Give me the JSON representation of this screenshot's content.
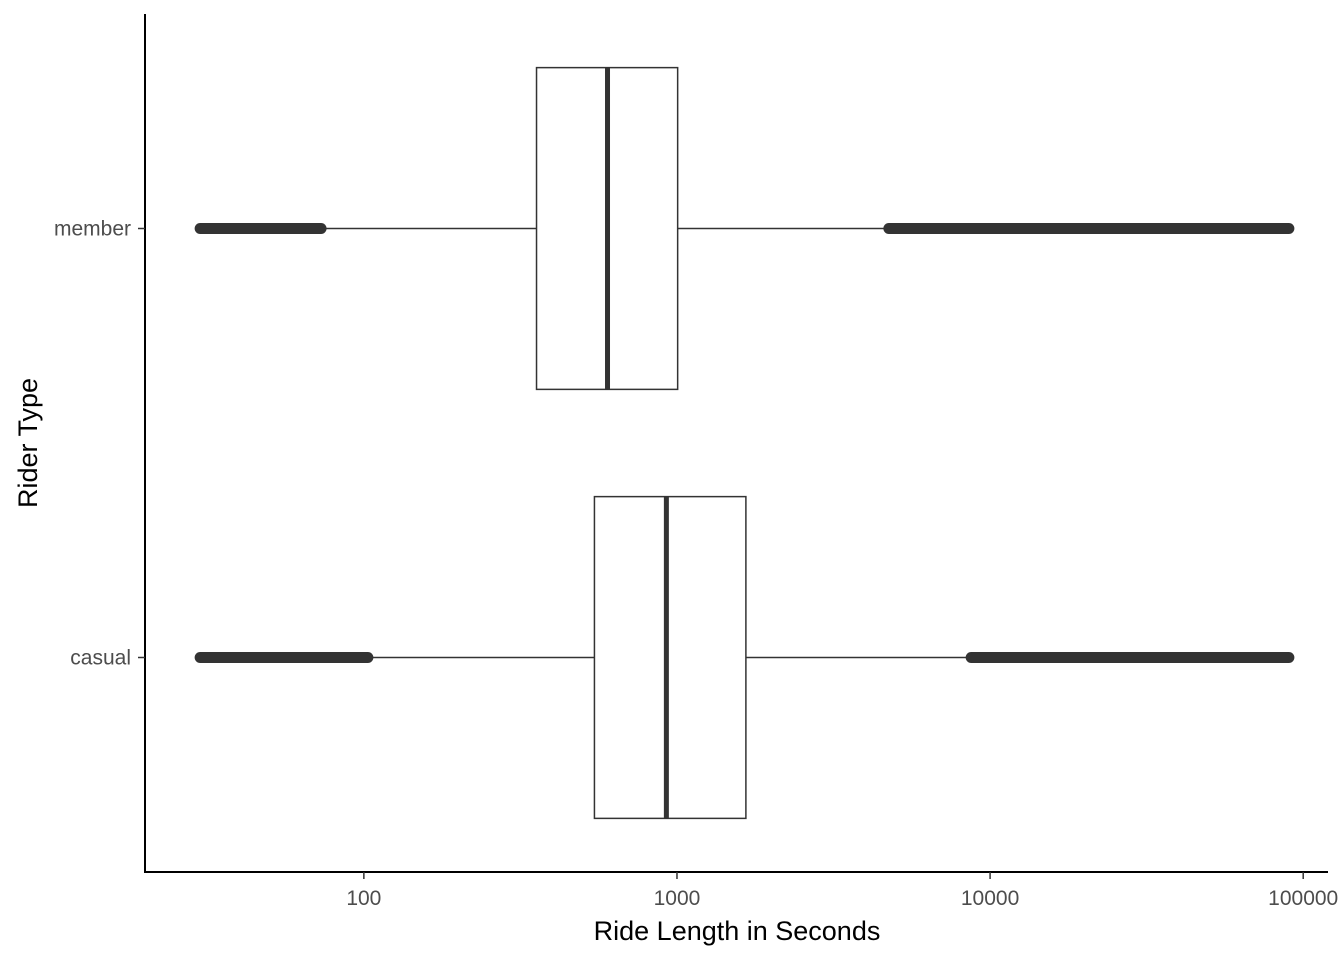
{
  "chart_data": {
    "type": "boxplot",
    "orientation": "horizontal",
    "title": "",
    "xlabel": "Ride Length in Seconds",
    "ylabel": "Rider Type",
    "x_scale": "log10",
    "xlim": [
      20,
      120000
    ],
    "x_ticks": [
      100,
      1000,
      10000,
      100000
    ],
    "x_tick_labels": [
      "100",
      "1000",
      "10000",
      "100000"
    ],
    "categories": [
      "member",
      "casual"
    ],
    "series": [
      {
        "category": "member",
        "min": 30,
        "q1": 356,
        "median": 600,
        "q3": 1005,
        "max": 90000,
        "whisker_low": 73,
        "whisker_high": 4750,
        "outliers_low_range": [
          30,
          73
        ],
        "outliers_high_range": [
          4750,
          90000
        ]
      },
      {
        "category": "casual",
        "min": 30,
        "q1": 545,
        "median": 925,
        "q3": 1660,
        "max": 90000,
        "whisker_low": 103,
        "whisker_high": 8700,
        "outliers_low_range": [
          30,
          103
        ],
        "outliers_high_range": [
          8700,
          90000
        ]
      }
    ],
    "grid": false,
    "legend": "none",
    "colors": {
      "box_fill": "#ffffff",
      "box_stroke": "#333333",
      "median": "#333333",
      "outlier": "#333333",
      "axis": "#000000"
    }
  }
}
